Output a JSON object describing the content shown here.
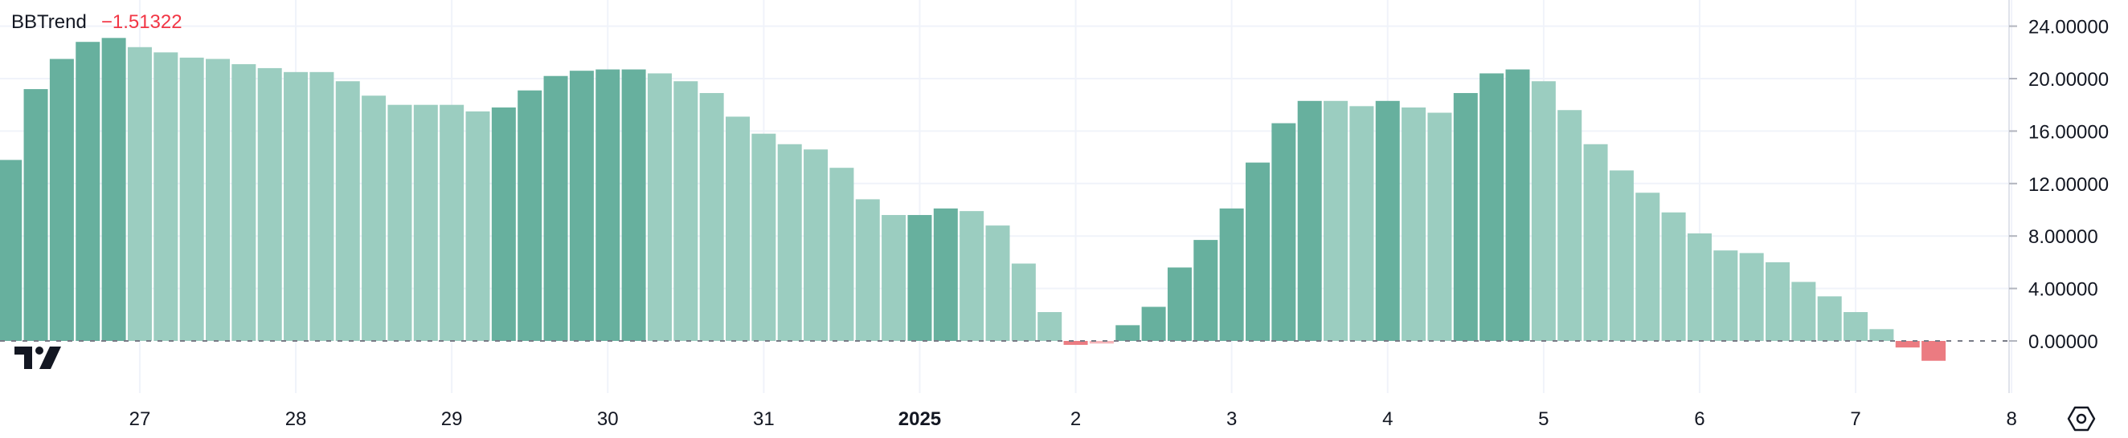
{
  "indicator": {
    "name": "BBTrend",
    "value": "−1.51322"
  },
  "chart_data": {
    "type": "bar",
    "title": "BBTrend",
    "grid": true,
    "zero_line": "dashed",
    "ylim": [
      -2.6,
      25.4
    ],
    "y_ticks": [
      0,
      4,
      8,
      12,
      16,
      20,
      24
    ],
    "y_tick_labels": [
      "0.00000",
      "4.00000",
      "8.00000",
      "12.00000",
      "16.00000",
      "20.00000",
      "24.00000"
    ],
    "x_tick_labels": [
      "27",
      "28",
      "29",
      "30",
      "31",
      "2025",
      "2",
      "3",
      "4",
      "5",
      "6",
      "7",
      "8"
    ],
    "x_tick_bar_index": [
      5,
      11,
      17,
      23,
      29,
      35,
      41,
      47,
      53,
      59,
      65,
      71,
      77
    ],
    "colors": {
      "rising_positive": "#67b09e",
      "falling_positive": "#9bcdc0",
      "falling_negative": "#eb7b81",
      "rising_negative": "#f6b5b9"
    },
    "values": [
      13.8,
      19.2,
      21.5,
      22.8,
      23.1,
      22.4,
      22.0,
      21.6,
      21.5,
      21.1,
      20.8,
      20.5,
      20.5,
      19.8,
      18.7,
      18.0,
      18.0,
      18.0,
      17.5,
      17.8,
      19.1,
      20.2,
      20.6,
      20.7,
      20.7,
      20.4,
      19.8,
      18.9,
      17.1,
      15.8,
      15.0,
      14.6,
      13.2,
      10.8,
      9.6,
      9.6,
      10.1,
      9.9,
      8.8,
      5.9,
      2.2,
      -0.3,
      -0.2,
      1.2,
      2.6,
      5.6,
      7.7,
      10.1,
      13.6,
      16.6,
      18.3,
      18.3,
      17.9,
      18.3,
      17.8,
      17.4,
      18.9,
      20.4,
      20.7,
      19.8,
      17.6,
      15.0,
      13.0,
      11.3,
      9.8,
      8.2,
      6.9,
      6.7,
      6.0,
      4.5,
      3.4,
      2.2,
      0.9,
      -0.5,
      -1.51322
    ],
    "bar_colors": [
      "rising_positive",
      "rising_positive",
      "rising_positive",
      "rising_positive",
      "rising_positive",
      "falling_positive",
      "falling_positive",
      "falling_positive",
      "falling_positive",
      "falling_positive",
      "falling_positive",
      "falling_positive",
      "falling_positive",
      "falling_positive",
      "falling_positive",
      "falling_positive",
      "falling_positive",
      "falling_positive",
      "falling_positive",
      "rising_positive",
      "rising_positive",
      "rising_positive",
      "rising_positive",
      "rising_positive",
      "rising_positive",
      "falling_positive",
      "falling_positive",
      "falling_positive",
      "falling_positive",
      "falling_positive",
      "falling_positive",
      "falling_positive",
      "falling_positive",
      "falling_positive",
      "falling_positive",
      "rising_positive",
      "rising_positive",
      "falling_positive",
      "falling_positive",
      "falling_positive",
      "falling_positive",
      "falling_negative",
      "rising_negative",
      "rising_positive",
      "rising_positive",
      "rising_positive",
      "rising_positive",
      "rising_positive",
      "rising_positive",
      "rising_positive",
      "rising_positive",
      "falling_positive",
      "falling_positive",
      "rising_positive",
      "falling_positive",
      "falling_positive",
      "rising_positive",
      "rising_positive",
      "rising_positive",
      "falling_positive",
      "falling_positive",
      "falling_positive",
      "falling_positive",
      "falling_positive",
      "falling_positive",
      "falling_positive",
      "falling_positive",
      "falling_positive",
      "falling_positive",
      "falling_positive",
      "falling_positive",
      "falling_positive",
      "falling_positive",
      "falling_negative",
      "falling_negative"
    ]
  },
  "icons": {
    "logo": "tradingview-logo-icon",
    "settings": "settings-hexagon-icon"
  }
}
